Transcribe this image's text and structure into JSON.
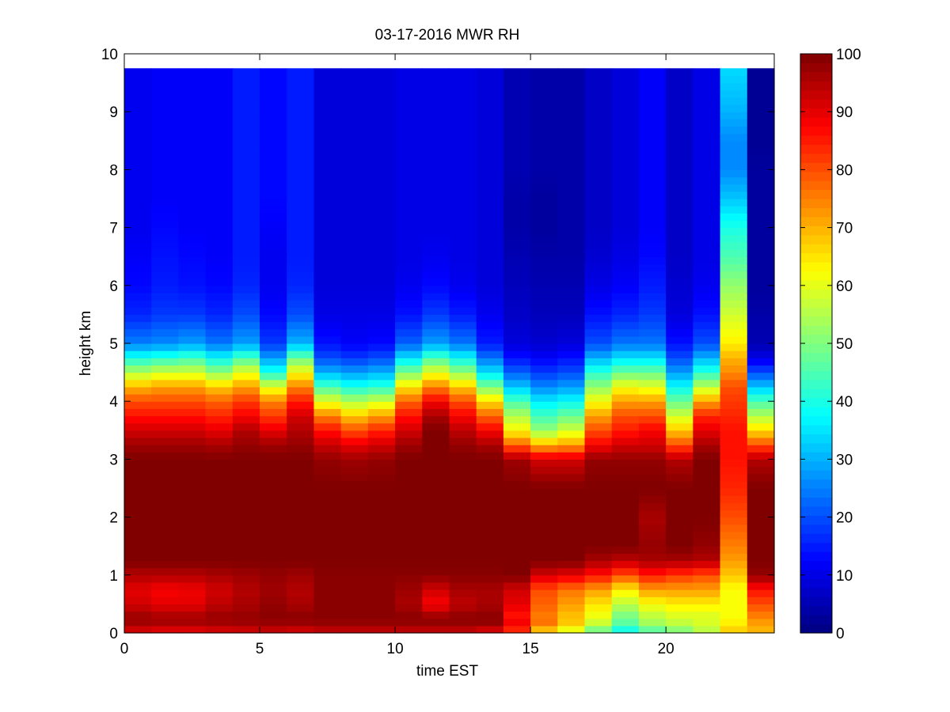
{
  "chart_data": {
    "type": "heatmap",
    "title": "03-17-2016 MWR RH",
    "xlabel": "time EST",
    "ylabel": "height km",
    "xlim": [
      0,
      24
    ],
    "ylim": [
      0,
      10
    ],
    "xticks": [
      0,
      5,
      10,
      15,
      20
    ],
    "yticks": [
      0,
      1,
      2,
      3,
      4,
      5,
      6,
      7,
      8,
      9,
      10
    ],
    "colorbar": {
      "colormap": "jet",
      "range": [
        0,
        100
      ],
      "ticks": [
        0,
        10,
        20,
        30,
        40,
        50,
        60,
        70,
        80,
        90,
        100
      ]
    },
    "grid": false,
    "x": [
      0,
      1,
      2,
      3,
      4,
      5,
      6,
      7,
      8,
      9,
      10,
      11,
      12,
      13,
      14,
      15,
      16,
      17,
      18,
      19,
      20,
      21,
      22,
      23
    ],
    "heights_km": [
      0.0,
      0.1,
      0.25,
      0.5,
      0.75,
      1.0,
      1.25,
      1.5,
      2.0,
      2.5,
      3.0,
      3.25,
      3.5,
      3.75,
      4.0,
      4.25,
      4.5,
      4.75,
      5.0,
      5.5,
      6.0,
      6.5,
      7.0,
      7.5,
      8.0,
      8.5,
      9.0,
      9.75
    ],
    "profiles": [
      [
        88,
        95,
        98,
        92,
        90,
        95,
        100,
        100,
        100,
        100,
        100,
        97,
        92,
        86,
        80,
        70,
        55,
        40,
        25,
        16,
        13,
        12,
        11,
        11,
        11,
        11,
        11,
        11
      ],
      [
        85,
        95,
        97,
        90,
        88,
        95,
        100,
        100,
        100,
        100,
        100,
        97,
        92,
        86,
        80,
        72,
        58,
        42,
        26,
        18,
        15,
        14,
        13,
        12,
        12,
        12,
        12,
        12
      ],
      [
        85,
        95,
        97,
        90,
        89,
        95,
        100,
        100,
        100,
        100,
        100,
        97,
        92,
        86,
        80,
        72,
        58,
        44,
        28,
        18,
        14,
        13,
        12,
        12,
        12,
        12,
        12,
        12
      ],
      [
        88,
        95,
        98,
        94,
        92,
        96,
        100,
        100,
        100,
        100,
        100,
        96,
        90,
        84,
        78,
        68,
        52,
        38,
        24,
        16,
        13,
        12,
        12,
        12,
        12,
        12,
        12,
        12
      ],
      [
        88,
        96,
        98,
        96,
        95,
        97,
        100,
        100,
        100,
        100,
        100,
        98,
        95,
        88,
        82,
        72,
        60,
        45,
        28,
        20,
        16,
        15,
        15,
        15,
        15,
        15,
        15,
        15
      ],
      [
        90,
        96,
        99,
        98,
        97,
        98,
        100,
        100,
        100,
        100,
        100,
        97,
        90,
        82,
        75,
        60,
        40,
        28,
        18,
        13,
        11,
        11,
        12,
        13,
        13,
        13,
        13,
        13
      ],
      [
        88,
        96,
        99,
        96,
        95,
        97,
        100,
        100,
        100,
        100,
        100,
        98,
        95,
        92,
        85,
        75,
        62,
        48,
        30,
        20,
        16,
        15,
        15,
        15,
        15,
        15,
        15,
        15
      ],
      [
        90,
        97,
        99,
        99,
        99,
        99,
        100,
        100,
        100,
        100,
        98,
        93,
        86,
        75,
        60,
        45,
        30,
        20,
        14,
        10,
        9,
        9,
        9,
        9,
        9,
        9,
        9,
        9
      ],
      [
        90,
        97,
        99,
        99,
        99,
        99,
        100,
        100,
        100,
        100,
        97,
        90,
        80,
        68,
        55,
        40,
        28,
        18,
        12,
        10,
        9,
        9,
        9,
        9,
        9,
        9,
        9,
        9
      ],
      [
        90,
        97,
        99,
        99,
        99,
        99,
        100,
        100,
        100,
        100,
        98,
        92,
        84,
        72,
        58,
        42,
        30,
        20,
        13,
        10,
        9,
        9,
        9,
        9,
        9,
        9,
        9,
        9
      ],
      [
        90,
        97,
        99,
        96,
        97,
        99,
        100,
        100,
        100,
        100,
        100,
        97,
        92,
        86,
        78,
        65,
        50,
        35,
        22,
        14,
        11,
        10,
        10,
        10,
        10,
        10,
        10,
        10
      ],
      [
        90,
        97,
        99,
        88,
        92,
        99,
        100,
        100,
        100,
        100,
        100,
        100,
        100,
        96,
        88,
        75,
        60,
        45,
        28,
        18,
        13,
        11,
        10,
        10,
        10,
        10,
        10,
        10
      ],
      [
        90,
        97,
        99,
        94,
        96,
        99,
        100,
        100,
        100,
        100,
        100,
        98,
        94,
        88,
        80,
        68,
        52,
        38,
        24,
        15,
        11,
        10,
        10,
        10,
        10,
        10,
        10,
        10
      ],
      [
        85,
        97,
        99,
        96,
        96,
        99,
        100,
        100,
        100,
        100,
        100,
        96,
        88,
        78,
        66,
        50,
        35,
        24,
        15,
        11,
        9,
        9,
        9,
        9,
        9,
        9,
        9,
        9
      ],
      [
        70,
        93,
        85,
        90,
        92,
        100,
        100,
        100,
        100,
        100,
        97,
        78,
        63,
        55,
        45,
        32,
        22,
        14,
        9,
        7,
        6,
        5,
        4,
        4,
        5,
        5,
        5,
        5
      ],
      [
        55,
        78,
        75,
        78,
        80,
        92,
        100,
        100,
        100,
        100,
        92,
        70,
        52,
        44,
        36,
        26,
        18,
        12,
        8,
        6,
        5,
        4,
        3,
        3,
        4,
        4,
        4,
        4
      ],
      [
        50,
        68,
        68,
        72,
        76,
        90,
        100,
        100,
        100,
        100,
        92,
        72,
        58,
        48,
        38,
        28,
        20,
        14,
        9,
        6,
        5,
        4,
        4,
        4,
        4,
        4,
        4,
        4
      ],
      [
        42,
        55,
        60,
        65,
        72,
        86,
        96,
        100,
        100,
        100,
        98,
        88,
        80,
        72,
        62,
        52,
        42,
        30,
        20,
        14,
        10,
        8,
        7,
        7,
        7,
        7,
        7,
        7
      ],
      [
        32,
        45,
        48,
        56,
        64,
        80,
        94,
        100,
        100,
        100,
        98,
        92,
        85,
        80,
        72,
        62,
        48,
        35,
        24,
        16,
        12,
        10,
        9,
        9,
        9,
        9,
        9,
        9
      ],
      [
        40,
        52,
        55,
        62,
        72,
        85,
        96,
        98,
        96,
        100,
        98,
        92,
        88,
        80,
        72,
        60,
        48,
        35,
        24,
        18,
        15,
        13,
        12,
        12,
        12,
        12,
        12,
        12
      ],
      [
        45,
        55,
        58,
        64,
        72,
        82,
        96,
        100,
        100,
        100,
        95,
        80,
        68,
        58,
        48,
        38,
        28,
        20,
        14,
        9,
        8,
        7,
        7,
        7,
        7,
        7,
        7,
        7
      ],
      [
        50,
        60,
        58,
        64,
        72,
        80,
        95,
        98,
        100,
        100,
        100,
        96,
        90,
        84,
        72,
        56,
        42,
        30,
        20,
        14,
        11,
        10,
        10,
        10,
        10,
        10,
        10,
        10
      ],
      [
        68,
        66,
        62,
        62,
        62,
        68,
        72,
        75,
        80,
        84,
        86,
        86,
        86,
        84,
        82,
        80,
        74,
        70,
        64,
        58,
        52,
        45,
        40,
        32,
        26,
        26,
        30,
        34
      ],
      [
        70,
        70,
        74,
        80,
        86,
        98,
        100,
        100,
        100,
        100,
        95,
        80,
        66,
        55,
        45,
        32,
        20,
        10,
        5,
        4,
        3,
        3,
        3,
        3,
        3,
        2,
        2,
        2
      ]
    ]
  }
}
